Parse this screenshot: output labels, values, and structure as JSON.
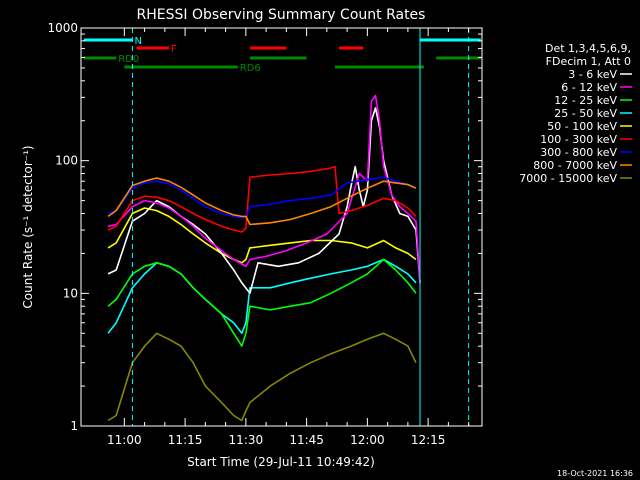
{
  "chart_data": {
    "type": "line",
    "title": "RHESSI Observing Summary Count Rates",
    "xlabel": "Start Time (29-Jul-11 10:49:42)",
    "ylabel": "Count Rate (s⁻¹ detector⁻¹)",
    "ylog": true,
    "ylim": [
      1,
      1000
    ],
    "xlim_minutes": [
      -10.7,
      88.3
    ],
    "x_ticks": [
      {
        "label": "11:00",
        "min": 0
      },
      {
        "label": "11:15",
        "min": 15
      },
      {
        "label": "11:30",
        "min": 30
      },
      {
        "label": "11:45",
        "min": 45
      },
      {
        "label": "12:00",
        "min": 60
      },
      {
        "label": "12:15",
        "min": 75
      }
    ],
    "y_ticks": [
      {
        "label": "1",
        "value": 1
      },
      {
        "label": "10",
        "value": 10
      },
      {
        "label": "100",
        "value": 100
      },
      {
        "label": "1000",
        "value": 1000
      }
    ],
    "legend_header": [
      "Det 1,3,4,5,6,9,",
      "FDecim 1, Att 0"
    ],
    "legend_position": "right",
    "series": [
      {
        "name": "3 - 6 keV",
        "color": "#ffffff",
        "points": [
          [
            -4,
            14
          ],
          [
            -2,
            15
          ],
          [
            2,
            35
          ],
          [
            5,
            40
          ],
          [
            8,
            50
          ],
          [
            11,
            45
          ],
          [
            14,
            38
          ],
          [
            17,
            33
          ],
          [
            20,
            28
          ],
          [
            24,
            20
          ],
          [
            27,
            15
          ],
          [
            29,
            12
          ],
          [
            31,
            10
          ],
          [
            33,
            17
          ],
          [
            38,
            16
          ],
          [
            43,
            17
          ],
          [
            48,
            20
          ],
          [
            53,
            28
          ],
          [
            55,
            45
          ],
          [
            56,
            65
          ],
          [
            57,
            90
          ],
          [
            58,
            60
          ],
          [
            59,
            45
          ],
          [
            60,
            60
          ],
          [
            61,
            200
          ],
          [
            62,
            250
          ],
          [
            63,
            180
          ],
          [
            64,
            100
          ],
          [
            66,
            55
          ],
          [
            68,
            40
          ],
          [
            70,
            38
          ],
          [
            72,
            30
          ],
          [
            73,
            12
          ]
        ]
      },
      {
        "name": "6 - 12 keV",
        "color": "#ff00ff",
        "points": [
          [
            -4,
            32
          ],
          [
            -2,
            33
          ],
          [
            2,
            45
          ],
          [
            5,
            50
          ],
          [
            8,
            48
          ],
          [
            11,
            44
          ],
          [
            14,
            38
          ],
          [
            17,
            32
          ],
          [
            20,
            26
          ],
          [
            24,
            21
          ],
          [
            27,
            18
          ],
          [
            30,
            16
          ],
          [
            31,
            18
          ],
          [
            35,
            19
          ],
          [
            40,
            21
          ],
          [
            45,
            24
          ],
          [
            50,
            28
          ],
          [
            55,
            40
          ],
          [
            58,
            80
          ],
          [
            60,
            70
          ],
          [
            61,
            280
          ],
          [
            62,
            310
          ],
          [
            63,
            200
          ],
          [
            64,
            90
          ],
          [
            66,
            55
          ],
          [
            68,
            45
          ],
          [
            70,
            40
          ],
          [
            72,
            35
          ],
          [
            73,
            12
          ]
        ]
      },
      {
        "name": "12 - 25 keV",
        "color": "#00ff00",
        "points": [
          [
            -4,
            8
          ],
          [
            -2,
            9
          ],
          [
            2,
            14
          ],
          [
            5,
            16
          ],
          [
            8,
            17
          ],
          [
            11,
            16
          ],
          [
            14,
            14
          ],
          [
            17,
            11
          ],
          [
            20,
            9
          ],
          [
            24,
            7
          ],
          [
            27,
            5
          ],
          [
            29,
            4
          ],
          [
            30,
            5
          ],
          [
            31,
            8
          ],
          [
            36,
            7.5
          ],
          [
            41,
            8
          ],
          [
            46,
            8.5
          ],
          [
            51,
            10
          ],
          [
            56,
            12
          ],
          [
            60,
            14
          ],
          [
            64,
            18
          ],
          [
            67,
            15
          ],
          [
            70,
            12
          ],
          [
            72,
            10
          ]
        ]
      },
      {
        "name": "25 - 50 keV",
        "color": "#00ffff",
        "points": [
          [
            -4,
            5
          ],
          [
            -2,
            6
          ],
          [
            2,
            11
          ],
          [
            5,
            14
          ],
          [
            8,
            17
          ],
          [
            11,
            16
          ],
          [
            14,
            14
          ],
          [
            17,
            11
          ],
          [
            20,
            9
          ],
          [
            24,
            7
          ],
          [
            27,
            6
          ],
          [
            29,
            5
          ],
          [
            30,
            6
          ],
          [
            31,
            11
          ],
          [
            36,
            11
          ],
          [
            41,
            12
          ],
          [
            46,
            13
          ],
          [
            51,
            14
          ],
          [
            56,
            15
          ],
          [
            60,
            16
          ],
          [
            64,
            18
          ],
          [
            67,
            16
          ],
          [
            70,
            14
          ],
          [
            72,
            12
          ]
        ]
      },
      {
        "name": "50 - 100 keV",
        "color": "#ffff00",
        "points": [
          [
            -4,
            22
          ],
          [
            -2,
            24
          ],
          [
            2,
            40
          ],
          [
            5,
            44
          ],
          [
            8,
            42
          ],
          [
            11,
            38
          ],
          [
            14,
            33
          ],
          [
            17,
            28
          ],
          [
            20,
            24
          ],
          [
            24,
            20
          ],
          [
            27,
            18
          ],
          [
            29,
            17
          ],
          [
            30,
            18
          ],
          [
            31,
            22
          ],
          [
            36,
            23
          ],
          [
            41,
            24
          ],
          [
            46,
            25
          ],
          [
            51,
            25
          ],
          [
            56,
            24
          ],
          [
            60,
            22
          ],
          [
            64,
            25
          ],
          [
            67,
            22
          ],
          [
            70,
            20
          ],
          [
            72,
            18
          ]
        ]
      },
      {
        "name": "100 - 300 keV",
        "color": "#ff0000",
        "points": [
          [
            -4,
            30
          ],
          [
            -2,
            32
          ],
          [
            2,
            50
          ],
          [
            5,
            54
          ],
          [
            8,
            53
          ],
          [
            11,
            50
          ],
          [
            14,
            45
          ],
          [
            17,
            40
          ],
          [
            20,
            36
          ],
          [
            24,
            32
          ],
          [
            27,
            30
          ],
          [
            29,
            29
          ],
          [
            30,
            31
          ],
          [
            31,
            75
          ],
          [
            36,
            78
          ],
          [
            41,
            80
          ],
          [
            46,
            83
          ],
          [
            51,
            88
          ],
          [
            52,
            90
          ],
          [
            53,
            40
          ],
          [
            56,
            42
          ],
          [
            60,
            46
          ],
          [
            64,
            52
          ],
          [
            67,
            50
          ],
          [
            70,
            44
          ],
          [
            72,
            38
          ]
        ]
      },
      {
        "name": "300 - 800 keV",
        "color": "#0000ff",
        "points": [
          [
            -4,
            40
          ],
          [
            -2,
            42
          ],
          [
            2,
            62
          ],
          [
            5,
            68
          ],
          [
            8,
            70
          ],
          [
            11,
            67
          ],
          [
            14,
            60
          ],
          [
            17,
            52
          ],
          [
            20,
            45
          ],
          [
            24,
            40
          ],
          [
            27,
            38
          ],
          [
            29,
            37
          ],
          [
            30,
            38
          ],
          [
            31,
            45
          ],
          [
            36,
            47
          ],
          [
            41,
            50
          ],
          [
            46,
            52
          ],
          [
            51,
            55
          ],
          [
            55,
            68
          ],
          [
            60,
            72
          ],
          [
            64,
            75
          ],
          [
            67,
            70
          ],
          [
            70,
            66
          ],
          [
            72,
            62
          ]
        ]
      },
      {
        "name": "800 - 7000 keV",
        "color": "#ff8800",
        "points": [
          [
            -4,
            38
          ],
          [
            -2,
            42
          ],
          [
            2,
            65
          ],
          [
            5,
            70
          ],
          [
            8,
            74
          ],
          [
            11,
            70
          ],
          [
            14,
            63
          ],
          [
            17,
            55
          ],
          [
            20,
            48
          ],
          [
            24,
            42
          ],
          [
            27,
            39
          ],
          [
            29,
            38
          ],
          [
            30,
            38
          ],
          [
            31,
            33
          ],
          [
            36,
            34
          ],
          [
            41,
            36
          ],
          [
            46,
            40
          ],
          [
            51,
            45
          ],
          [
            56,
            54
          ],
          [
            60,
            62
          ],
          [
            64,
            70
          ],
          [
            67,
            68
          ],
          [
            70,
            66
          ],
          [
            72,
            62
          ]
        ]
      },
      {
        "name": "7000 - 15000 keV",
        "color": "#888800",
        "points": [
          [
            -4,
            1.1
          ],
          [
            -2,
            1.2
          ],
          [
            2,
            3
          ],
          [
            5,
            4
          ],
          [
            8,
            5
          ],
          [
            11,
            4.5
          ],
          [
            14,
            4
          ],
          [
            17,
            3
          ],
          [
            20,
            2
          ],
          [
            24,
            1.5
          ],
          [
            27,
            1.2
          ],
          [
            29,
            1.1
          ],
          [
            30,
            1.3
          ],
          [
            31,
            1.5
          ],
          [
            36,
            2
          ],
          [
            41,
            2.5
          ],
          [
            46,
            3
          ],
          [
            51,
            3.5
          ],
          [
            56,
            4
          ],
          [
            60,
            4.5
          ],
          [
            64,
            5
          ],
          [
            67,
            4.5
          ],
          [
            70,
            4
          ],
          [
            72,
            3
          ]
        ]
      }
    ],
    "state_bars": [
      {
        "name": "N",
        "color": "#00ffff",
        "segments": [
          [
            -10,
            2
          ],
          [
            73,
            88
          ]
        ]
      },
      {
        "name": "F",
        "color": "#ff0000",
        "segments": [
          [
            3,
            11
          ],
          [
            31,
            40
          ],
          [
            53,
            59
          ]
        ]
      },
      {
        "name": "RD0",
        "color": "#008800",
        "segments": [
          [
            -10,
            -2
          ],
          [
            31,
            45
          ],
          [
            77,
            88
          ]
        ]
      },
      {
        "name": "RD6",
        "color": "#008800",
        "segments": [
          [
            0,
            28
          ],
          [
            52,
            74
          ]
        ]
      }
    ],
    "markers": [
      {
        "type": "vline",
        "color": "#00ffff",
        "style": "solid",
        "x": 73
      },
      {
        "type": "vline",
        "color": "#00ffff",
        "style": "dashed",
        "x": 2
      },
      {
        "type": "vline",
        "color": "#00ffff",
        "style": "dashed",
        "x": 85
      }
    ]
  },
  "footer": {
    "date": "18-Oct-2021 16:36"
  }
}
